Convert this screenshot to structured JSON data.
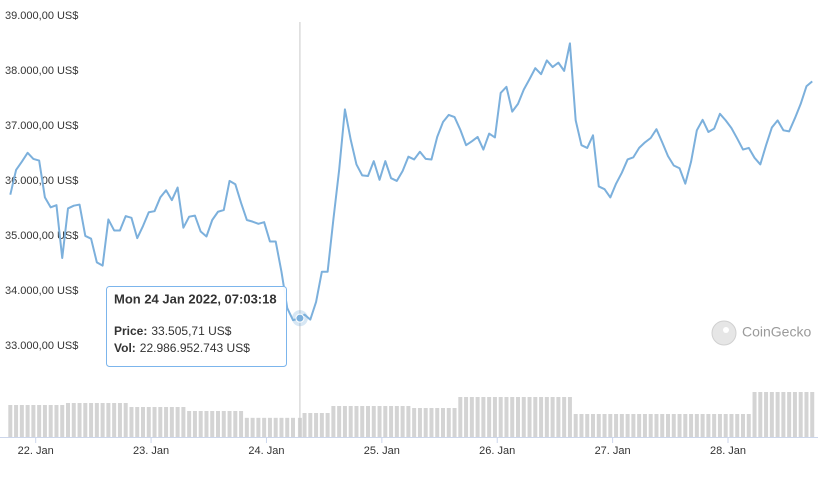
{
  "chart_data": {
    "type": "line",
    "x": [
      21.78,
      21.83,
      21.88,
      21.93,
      21.98,
      22.03,
      22.08,
      22.13,
      22.18,
      22.23,
      22.28,
      22.33,
      22.38,
      22.43,
      22.48,
      22.53,
      22.58,
      22.63,
      22.68,
      22.73,
      22.78,
      22.83,
      22.88,
      22.93,
      22.98,
      23.03,
      23.08,
      23.13,
      23.18,
      23.23,
      23.28,
      23.33,
      23.38,
      23.43,
      23.48,
      23.53,
      23.58,
      23.63,
      23.68,
      23.73,
      23.78,
      23.83,
      23.88,
      23.93,
      23.98,
      24.03,
      24.08,
      24.13,
      24.18,
      24.23,
      24.29,
      24.33,
      24.38,
      24.43,
      24.48,
      24.53,
      24.58,
      24.63,
      24.68,
      24.73,
      24.78,
      24.83,
      24.88,
      24.93,
      24.98,
      25.03,
      25.08,
      25.13,
      25.18,
      25.23,
      25.28,
      25.33,
      25.38,
      25.43,
      25.48,
      25.53,
      25.58,
      25.63,
      25.68,
      25.73,
      25.78,
      25.83,
      25.88,
      25.93,
      25.98,
      26.03,
      26.08,
      26.13,
      26.18,
      26.23,
      26.28,
      26.33,
      26.38,
      26.43,
      26.48,
      26.53,
      26.58,
      26.63,
      26.68,
      26.73,
      26.78,
      26.83,
      26.88,
      26.93,
      26.98,
      27.03,
      27.08,
      27.13,
      27.18,
      27.23,
      27.28,
      27.33,
      27.38,
      27.43,
      27.48,
      27.53,
      27.58,
      27.63,
      27.68,
      27.73,
      27.78,
      27.83,
      27.88,
      27.93,
      27.98,
      28.03,
      28.08,
      28.13,
      28.18,
      28.23,
      28.28,
      28.33,
      28.38,
      28.43,
      28.48,
      28.53,
      28.58,
      28.63,
      28.68,
      28.73
    ],
    "xlim": [
      21.76,
      28.78
    ],
    "xticks": [
      {
        "value": 22,
        "label": "22. Jan"
      },
      {
        "value": 23,
        "label": "23. Jan"
      },
      {
        "value": 24,
        "label": "24. Jan"
      },
      {
        "value": 25,
        "label": "25. Jan"
      },
      {
        "value": 26,
        "label": "26. Jan"
      },
      {
        "value": 27,
        "label": "27. Jan"
      },
      {
        "value": 28,
        "label": "28. Jan"
      }
    ],
    "ylim": [
      32600,
      39270
    ],
    "yticks": [
      {
        "value": 33000,
        "label": "33.000,00 US$"
      },
      {
        "value": 34000,
        "label": "34.000,00 US$"
      },
      {
        "value": 35000,
        "label": "35.000,00 US$"
      },
      {
        "value": 36000,
        "label": "36.000,00 US$"
      },
      {
        "value": 37000,
        "label": "37.000,00 US$"
      },
      {
        "value": 38000,
        "label": "38.000,00 US$"
      },
      {
        "value": 39000,
        "label": "39.000,00 US$"
      }
    ],
    "y2lim": [
      0,
      60000000000
    ],
    "series": [
      {
        "color": "#7cb0dc",
        "values": [
          35750,
          36200,
          36350,
          36510,
          36400,
          36370,
          35700,
          35520,
          35560,
          34600,
          35500,
          35550,
          35570,
          35000,
          34950,
          34520,
          34460,
          35300,
          35100,
          35100,
          35360,
          35330,
          34960,
          35180,
          35430,
          35450,
          35700,
          35830,
          35650,
          35880,
          35150,
          35350,
          35370,
          35080,
          34990,
          35290,
          35440,
          35470,
          36000,
          35940,
          35600,
          35290,
          35260,
          35220,
          35250,
          34900,
          34900,
          34350,
          33690,
          33470,
          33505.71,
          33570,
          33480,
          33800,
          34350,
          34350,
          35300,
          36200,
          37300,
          36750,
          36300,
          36100,
          36090,
          36360,
          36020,
          36360,
          36050,
          36000,
          36180,
          36440,
          36390,
          36530,
          36400,
          36390,
          36800,
          37070,
          37200,
          37160,
          36930,
          36650,
          36720,
          36800,
          36570,
          36860,
          36790,
          37600,
          37710,
          37260,
          37400,
          37660,
          37850,
          38050,
          37940,
          38190,
          38070,
          38150,
          38000,
          38500,
          37100,
          36650,
          36600,
          36830,
          35900,
          35850,
          35700,
          35950,
          36150,
          36390,
          36430,
          36600,
          36700,
          36780,
          36940,
          36700,
          36450,
          36280,
          36230,
          35950,
          36350,
          36920,
          37110,
          36890,
          36950,
          37220,
          37100,
          36960,
          36770,
          36570,
          36600,
          36420,
          36300,
          36650,
          36970,
          37100,
          36920,
          36900,
          37140,
          37400,
          37720,
          37810
        ]
      },
      {
        "type": "bar",
        "axis": "y2",
        "color": "#d4d4d4",
        "values": [
          38400000000,
          38400000000,
          38400000000,
          38400000000,
          38400000000,
          38400000000,
          38400000000,
          38400000000,
          38400000000,
          38400000000,
          40800000000,
          40800000000,
          40800000000,
          40800000000,
          40800000000,
          40800000000,
          40800000000,
          40800000000,
          40800000000,
          40800000000,
          40800000000,
          36000000000,
          36000000000,
          36000000000,
          36000000000,
          36000000000,
          36000000000,
          36000000000,
          36000000000,
          36000000000,
          36000000000,
          31200000000,
          31200000000,
          31200000000,
          31200000000,
          31200000000,
          31200000000,
          31200000000,
          31200000000,
          31200000000,
          31200000000,
          22986952743,
          22986952743,
          22986952743,
          22986952743,
          22986952743,
          22986952743,
          22986952743,
          22986952743,
          22986952743,
          22986952743,
          28800000000,
          28800000000,
          28800000000,
          28800000000,
          28800000000,
          37200000000,
          37200000000,
          37200000000,
          37200000000,
          37200000000,
          37200000000,
          37200000000,
          37200000000,
          37200000000,
          37200000000,
          37200000000,
          37200000000,
          37200000000,
          37200000000,
          34800000000,
          34800000000,
          34800000000,
          34800000000,
          34800000000,
          34800000000,
          34800000000,
          34800000000,
          48000000000,
          48000000000,
          48000000000,
          48000000000,
          48000000000,
          48000000000,
          48000000000,
          48000000000,
          48000000000,
          48000000000,
          48000000000,
          48000000000,
          48000000000,
          48000000000,
          48000000000,
          48000000000,
          48000000000,
          48000000000,
          48000000000,
          48000000000,
          27600000000,
          27600000000,
          27600000000,
          27600000000,
          27600000000,
          27600000000,
          27600000000,
          27600000000,
          27600000000,
          27600000000,
          27600000000,
          27600000000,
          27600000000,
          27600000000,
          27600000000,
          27600000000,
          27600000000,
          27600000000,
          27600000000,
          27600000000,
          27600000000,
          27600000000,
          27600000000,
          27600000000,
          27600000000,
          27600000000,
          27600000000,
          27600000000,
          27600000000,
          27600000000,
          27600000000,
          54000000000,
          54000000000,
          54000000000,
          54000000000,
          54000000000,
          54000000000,
          54000000000,
          54000000000,
          54000000000,
          54000000000,
          54000000000
        ]
      }
    ],
    "tooltip": {
      "title": "Mon 24 Jan 2022, 07:03:18",
      "lines": [
        {
          "label": "Price:",
          "value": "33.505,71 US$"
        },
        {
          "label": "Vol:",
          "value": "22.986.952.743 US$"
        }
      ]
    },
    "watermark": "CoinGecko"
  }
}
